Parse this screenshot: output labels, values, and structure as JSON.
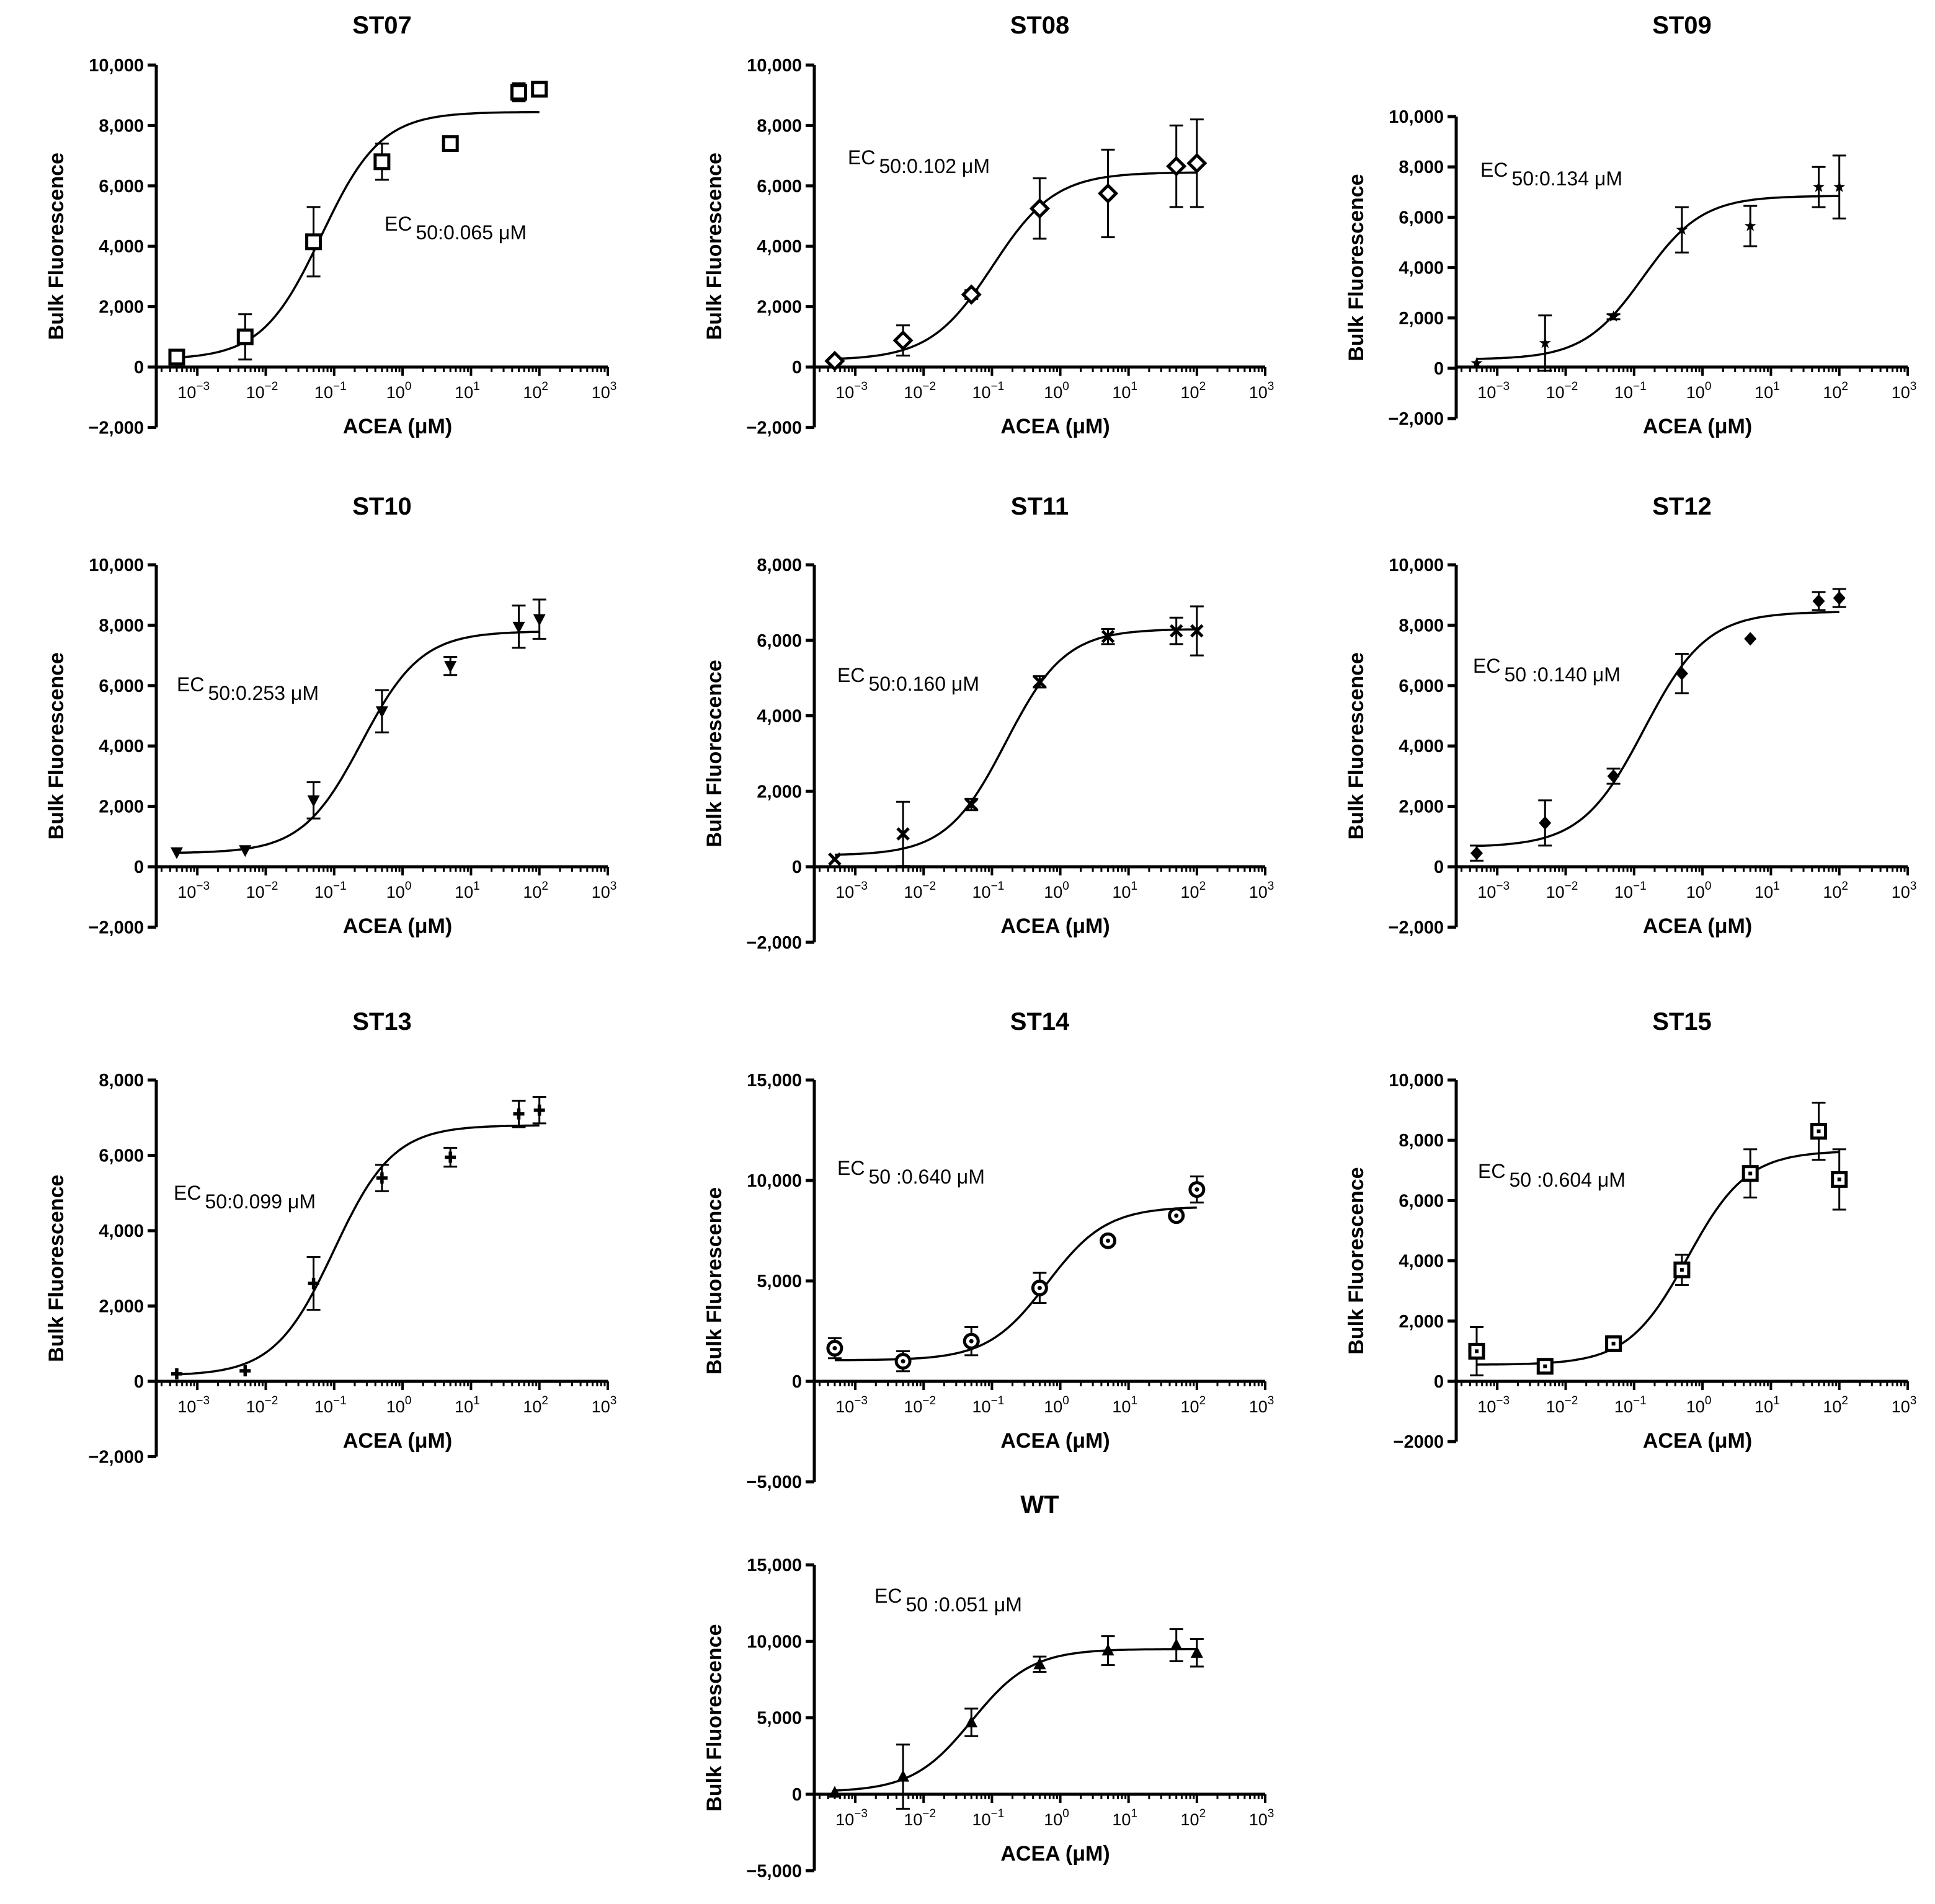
{
  "x_axis_tick_labels": [
    {
      "base": "10",
      "exp": "−3"
    },
    {
      "base": "10",
      "exp": "−2"
    },
    {
      "base": "10",
      "exp": "−1"
    },
    {
      "base": "10",
      "exp": "0"
    },
    {
      "base": "10",
      "exp": "1"
    },
    {
      "base": "10",
      "exp": "2"
    },
    {
      "base": "10",
      "exp": "3"
    }
  ],
  "chart_data": [
    {
      "type": "scatter",
      "title": "ST07",
      "xlabel": "ACEA  (μM)",
      "ylabel": "Bulk Fluorescence",
      "xscale": "log",
      "ylim": [
        -2000,
        10000
      ],
      "ytick_labels": [
        "−2,000",
        "0",
        "2,000",
        "4,000",
        "6,000",
        "8,000",
        "10,000"
      ],
      "marker": "square-open",
      "ec50_label": {
        "prefix": "EC",
        "sub": "50",
        "text": ":0.065 μM"
      },
      "fit": {
        "bottom": 250,
        "top": 8450,
        "ec50": 0.065,
        "hill": 1.0
      },
      "points": [
        {
          "x": 0.0005,
          "y": 330,
          "err": 150
        },
        {
          "x": 0.005,
          "y": 1000,
          "err": 750
        },
        {
          "x": 0.05,
          "y": 4150,
          "err": 1150
        },
        {
          "x": 0.5,
          "y": 6800,
          "err": 600
        },
        {
          "x": 5,
          "y": 7400,
          "err": 0
        },
        {
          "x": 50,
          "y": 9100,
          "err": 300
        },
        {
          "x": 100,
          "y": 9200,
          "err": 0
        }
      ]
    },
    {
      "type": "scatter",
      "title": "ST08",
      "xlabel": "ACEA  (μM)",
      "ylabel": "Bulk Fluorescence",
      "xscale": "log",
      "ylim": [
        -2000,
        10000
      ],
      "ytick_labels": [
        "−2,000",
        "0",
        "2,000",
        "4,000",
        "6,000",
        "8,000",
        "10,000"
      ],
      "marker": "diamond-open",
      "ec50_label": {
        "prefix": "EC",
        "sub": "50",
        "text": ":0.102 μM"
      },
      "fit": {
        "bottom": 230,
        "top": 6450,
        "ec50": 0.102,
        "hill": 0.95
      },
      "points": [
        {
          "x": 0.0005,
          "y": 200,
          "err": 100
        },
        {
          "x": 0.005,
          "y": 880,
          "err": 500
        },
        {
          "x": 0.05,
          "y": 2400,
          "err": 150
        },
        {
          "x": 0.5,
          "y": 5250,
          "err": 1000
        },
        {
          "x": 5,
          "y": 5750,
          "err": 1450
        },
        {
          "x": 50,
          "y": 6650,
          "err": 1350
        },
        {
          "x": 100,
          "y": 6750,
          "err": 1450
        }
      ]
    },
    {
      "type": "scatter",
      "title": "ST09",
      "xlabel": "ACEA  (μM)",
      "ylabel": "Bulk Fluorescence",
      "xscale": "log",
      "ylim": [
        -2000,
        10000
      ],
      "ytick_labels": [
        "−2,000",
        "0",
        "2,000",
        "4,000",
        "6,000",
        "8,000",
        "10,000"
      ],
      "marker": "star",
      "ec50_label": {
        "prefix": "EC",
        "sub": "50",
        "text": ":0.134 μM"
      },
      "fit": {
        "bottom": 350,
        "top": 6850,
        "ec50": 0.134,
        "hill": 1.0
      },
      "points": [
        {
          "x": 0.0005,
          "y": 200,
          "err": 0
        },
        {
          "x": 0.005,
          "y": 1000,
          "err": 1100
        },
        {
          "x": 0.05,
          "y": 2050,
          "err": 100
        },
        {
          "x": 0.5,
          "y": 5500,
          "err": 900
        },
        {
          "x": 5,
          "y": 5650,
          "err": 800
        },
        {
          "x": 50,
          "y": 7200,
          "err": 800
        },
        {
          "x": 100,
          "y": 7200,
          "err": 1250
        }
      ]
    },
    {
      "type": "scatter",
      "title": "ST10",
      "xlabel": "ACEA  (μM)",
      "ylabel": "Bulk Fluorescence",
      "xscale": "log",
      "ylim": [
        -2000,
        10000
      ],
      "ytick_labels": [
        "−2,000",
        "0",
        "2,000",
        "4,000",
        "6,000",
        "8,000",
        "10,000"
      ],
      "marker": "triangle-down",
      "ec50_label": {
        "prefix": "EC",
        "sub": "50",
        "text": ":0.253 μM"
      },
      "fit": {
        "bottom": 450,
        "top": 7800,
        "ec50": 0.253,
        "hill": 1.0
      },
      "points": [
        {
          "x": 0.0005,
          "y": 480,
          "err": 0
        },
        {
          "x": 0.005,
          "y": 550,
          "err": 0
        },
        {
          "x": 0.05,
          "y": 2200,
          "err": 600
        },
        {
          "x": 0.5,
          "y": 5150,
          "err": 700
        },
        {
          "x": 5,
          "y": 6650,
          "err": 300
        },
        {
          "x": 50,
          "y": 7950,
          "err": 700
        },
        {
          "x": 100,
          "y": 8200,
          "err": 650
        }
      ]
    },
    {
      "type": "scatter",
      "title": "ST11",
      "xlabel": "ACEA  (μM)",
      "ylabel": "Bulk Fluorescence",
      "xscale": "log",
      "ylim": [
        -2000,
        8000
      ],
      "ytick_labels": [
        "−2,000",
        "0",
        "2,000",
        "4,000",
        "6,000",
        "8,000"
      ],
      "marker": "x",
      "ec50_label": {
        "prefix": "EC",
        "sub": "50",
        "text": ":0.160 μM"
      },
      "fit": {
        "bottom": 300,
        "top": 6300,
        "ec50": 0.16,
        "hill": 1.0
      },
      "points": [
        {
          "x": 0.0005,
          "y": 200,
          "err": 0
        },
        {
          "x": 0.005,
          "y": 870,
          "err": 850
        },
        {
          "x": 0.05,
          "y": 1650,
          "err": 150
        },
        {
          "x": 0.5,
          "y": 4900,
          "err": 150
        },
        {
          "x": 5,
          "y": 6100,
          "err": 200
        },
        {
          "x": 50,
          "y": 6250,
          "err": 350
        },
        {
          "x": 100,
          "y": 6250,
          "err": 650
        }
      ]
    },
    {
      "type": "scatter",
      "title": "ST12",
      "xlabel": "ACEA  (μM)",
      "ylabel": "Bulk Fluorescence",
      "xscale": "log",
      "ylim": [
        -2000,
        10000
      ],
      "ytick_labels": [
        "−2,000",
        "0",
        "2,000",
        "4,000",
        "6,000",
        "8,000",
        "10,000"
      ],
      "marker": "diamond-filled",
      "ec50_label": {
        "prefix": "EC",
        "sub": "50",
        "text": " :0.140 μM"
      },
      "fit": {
        "bottom": 650,
        "top": 8450,
        "ec50": 0.14,
        "hill": 0.95
      },
      "points": [
        {
          "x": 0.0005,
          "y": 450,
          "err": 250
        },
        {
          "x": 0.005,
          "y": 1450,
          "err": 750
        },
        {
          "x": 0.05,
          "y": 3000,
          "err": 250
        },
        {
          "x": 0.5,
          "y": 6400,
          "err": 650
        },
        {
          "x": 5,
          "y": 7550,
          "err": 0
        },
        {
          "x": 50,
          "y": 8800,
          "err": 300
        },
        {
          "x": 100,
          "y": 8900,
          "err": 300
        }
      ]
    },
    {
      "type": "scatter",
      "title": "ST13",
      "xlabel": "ACEA  (μM)",
      "ylabel": "Bulk Fluorescence",
      "xscale": "log",
      "ylim": [
        -2000,
        8000
      ],
      "ytick_labels": [
        "−2,000",
        "0",
        "2,000",
        "4,000",
        "6,000",
        "8,000"
      ],
      "marker": "plus",
      "ec50_label": {
        "prefix": "EC",
        "sub": "50",
        "text": ":0.099 μM"
      },
      "fit": {
        "bottom": 150,
        "top": 6800,
        "ec50": 0.099,
        "hill": 1.0
      },
      "points": [
        {
          "x": 0.0005,
          "y": 200,
          "err": 0
        },
        {
          "x": 0.005,
          "y": 280,
          "err": 0
        },
        {
          "x": 0.05,
          "y": 2600,
          "err": 700
        },
        {
          "x": 0.5,
          "y": 5400,
          "err": 350
        },
        {
          "x": 5,
          "y": 5950,
          "err": 250
        },
        {
          "x": 50,
          "y": 7100,
          "err": 350
        },
        {
          "x": 100,
          "y": 7200,
          "err": 350
        }
      ]
    },
    {
      "type": "scatter",
      "title": "ST14",
      "xlabel": "ACEA  (μM)",
      "ylabel": "Bulk Fluorescence",
      "xscale": "log",
      "ylim": [
        -5000,
        15000
      ],
      "ytick_labels": [
        "−5,000",
        "0",
        "5,000",
        "10,000",
        "15,000"
      ],
      "marker": "circle-dot",
      "ec50_label": {
        "prefix": "EC",
        "sub": "50",
        "text": " :0.640 μM"
      },
      "fit": {
        "bottom": 1050,
        "top": 8700,
        "ec50": 0.64,
        "hill": 1.0
      },
      "points": [
        {
          "x": 0.0005,
          "y": 1650,
          "err": 500
        },
        {
          "x": 0.005,
          "y": 1000,
          "err": 500
        },
        {
          "x": 0.05,
          "y": 2000,
          "err": 700
        },
        {
          "x": 0.5,
          "y": 4650,
          "err": 750
        },
        {
          "x": 5,
          "y": 7000,
          "err": 0
        },
        {
          "x": 50,
          "y": 8250,
          "err": 0
        },
        {
          "x": 100,
          "y": 9550,
          "err": 650
        }
      ]
    },
    {
      "type": "scatter",
      "title": "ST15",
      "xlabel": "ACEA  (μM)",
      "ylabel": "Bulk Fluorescence",
      "xscale": "log",
      "ylim": [
        -2000,
        10000
      ],
      "ytick_labels": [
        "−2000",
        "0",
        "2,000",
        "4,000",
        "6,000",
        "8,000",
        "10,000"
      ],
      "marker": "square-dot",
      "ec50_label": {
        "prefix": "EC",
        "sub": "50",
        "text": " :0.604 μM"
      },
      "fit": {
        "bottom": 550,
        "top": 7650,
        "ec50": 0.604,
        "hill": 1.0
      },
      "points": [
        {
          "x": 0.0005,
          "y": 1000,
          "err": 800
        },
        {
          "x": 0.005,
          "y": 500,
          "err": 0
        },
        {
          "x": 0.05,
          "y": 1250,
          "err": 250
        },
        {
          "x": 0.5,
          "y": 3700,
          "err": 500
        },
        {
          "x": 5,
          "y": 6900,
          "err": 800
        },
        {
          "x": 50,
          "y": 8300,
          "err": 950
        },
        {
          "x": 100,
          "y": 6700,
          "err": 1000
        }
      ]
    },
    {
      "type": "scatter",
      "title": "WT",
      "xlabel": "ACEA  (μM)",
      "ylabel": "Bulk Fluorescence",
      "xscale": "log",
      "ylim": [
        -5000,
        15000
      ],
      "ytick_labels": [
        "−5,000",
        "0",
        "5,000",
        "10,000",
        "15,000"
      ],
      "marker": "triangle-up",
      "ec50_label": {
        "prefix": "EC",
        "sub": "50",
        "text": " :0.051 μM"
      },
      "fit": {
        "bottom": 150,
        "top": 9500,
        "ec50": 0.051,
        "hill": 1.0
      },
      "points": [
        {
          "x": 0.0005,
          "y": 100,
          "err": 0
        },
        {
          "x": 0.005,
          "y": 1150,
          "err": 2100
        },
        {
          "x": 0.05,
          "y": 4700,
          "err": 900
        },
        {
          "x": 0.5,
          "y": 8500,
          "err": 500
        },
        {
          "x": 5,
          "y": 9400,
          "err": 950
        },
        {
          "x": 50,
          "y": 9750,
          "err": 1050
        },
        {
          "x": 100,
          "y": 9250,
          "err": 900
        }
      ]
    }
  ]
}
